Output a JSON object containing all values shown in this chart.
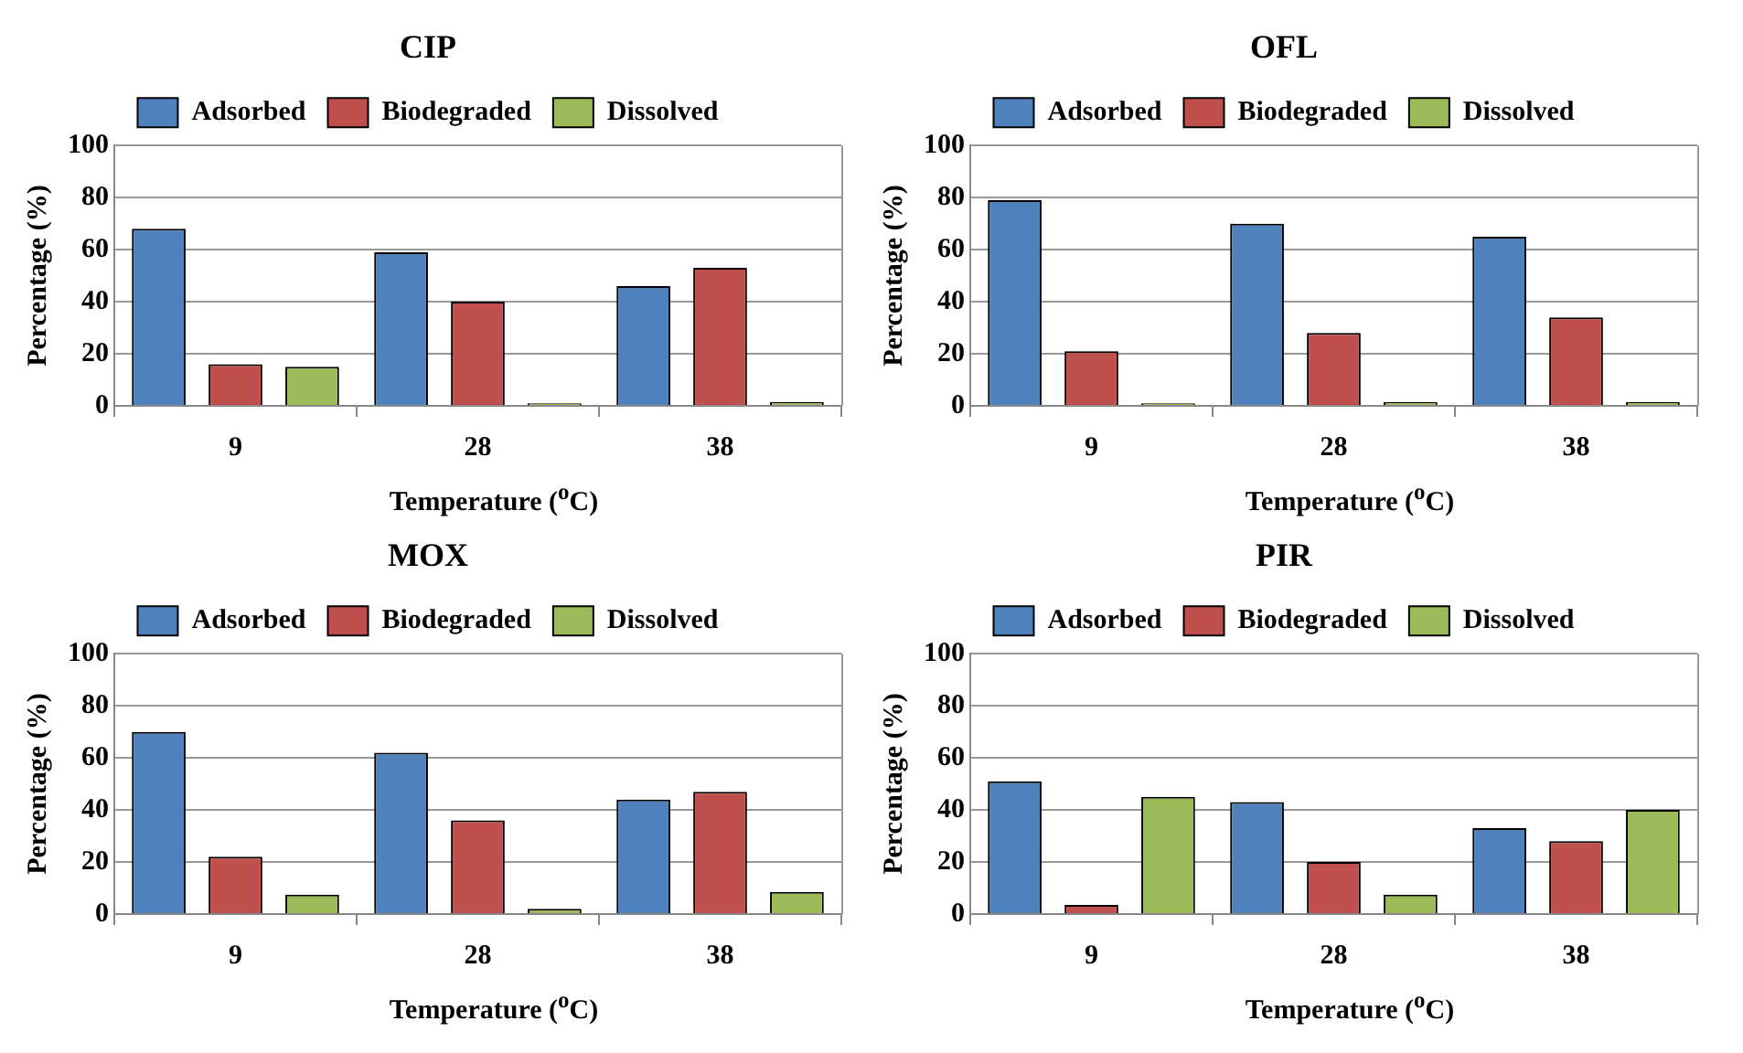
{
  "chart_data": [
    {
      "type": "bar",
      "title": "CIP",
      "xlabel": "Temperature ($^{o}$C)",
      "ylabel": "Percentage (%)",
      "categories": [
        "9",
        "28",
        "38"
      ],
      "series": [
        {
          "name": "Adsorbed",
          "color": "#4f81bd",
          "values": [
            68,
            59,
            46
          ]
        },
        {
          "name": "Biodegraded",
          "color": "#c0504d",
          "values": [
            16,
            40,
            53
          ]
        },
        {
          "name": "Dissolved",
          "color": "#9bbb59",
          "values": [
            15,
            1,
            1.5
          ]
        }
      ],
      "ylim": [
        0,
        100
      ],
      "yticks": [
        0,
        20,
        40,
        60,
        80,
        100
      ],
      "grid": "y",
      "legend": "top"
    },
    {
      "type": "bar",
      "title": "OFL",
      "xlabel": "Temperature ($^{o}$C)",
      "ylabel": "Percentage (%)",
      "categories": [
        "9",
        "28",
        "38"
      ],
      "series": [
        {
          "name": "Adsorbed",
          "color": "#4f81bd",
          "values": [
            79,
            70,
            65
          ]
        },
        {
          "name": "Biodegraded",
          "color": "#c0504d",
          "values": [
            21,
            28,
            34
          ]
        },
        {
          "name": "Dissolved",
          "color": "#9bbb59",
          "values": [
            1,
            1.5,
            1.5
          ]
        }
      ],
      "ylim": [
        0,
        100
      ],
      "yticks": [
        0,
        20,
        40,
        60,
        80,
        100
      ],
      "grid": "y",
      "legend": "top"
    },
    {
      "type": "bar",
      "title": "MOX",
      "xlabel": "Temperature ($^{o}$C)",
      "ylabel": "Percentage (%)",
      "categories": [
        "9",
        "28",
        "38"
      ],
      "series": [
        {
          "name": "Adsorbed",
          "color": "#4f81bd",
          "values": [
            70,
            62,
            44
          ]
        },
        {
          "name": "Biodegraded",
          "color": "#c0504d",
          "values": [
            22,
            36,
            47
          ]
        },
        {
          "name": "Dissolved",
          "color": "#9bbb59",
          "values": [
            7.5,
            2,
            8.5
          ]
        }
      ],
      "ylim": [
        0,
        100
      ],
      "yticks": [
        0,
        20,
        40,
        60,
        80,
        100
      ],
      "grid": "y",
      "legend": "top"
    },
    {
      "type": "bar",
      "title": "PIR",
      "xlabel": "Temperature ($^{o}$C)",
      "ylabel": "Percentage (%)",
      "categories": [
        "9",
        "28",
        "38"
      ],
      "series": [
        {
          "name": "Adsorbed",
          "color": "#4f81bd",
          "values": [
            51,
            43,
            33
          ]
        },
        {
          "name": "Biodegraded",
          "color": "#c0504d",
          "values": [
            3.5,
            20,
            28
          ]
        },
        {
          "name": "Dissolved",
          "color": "#9bbb59",
          "values": [
            45,
            7.5,
            40
          ]
        }
      ],
      "ylim": [
        0,
        100
      ],
      "yticks": [
        0,
        20,
        40,
        60,
        80,
        100
      ],
      "grid": "y",
      "legend": "top"
    }
  ]
}
